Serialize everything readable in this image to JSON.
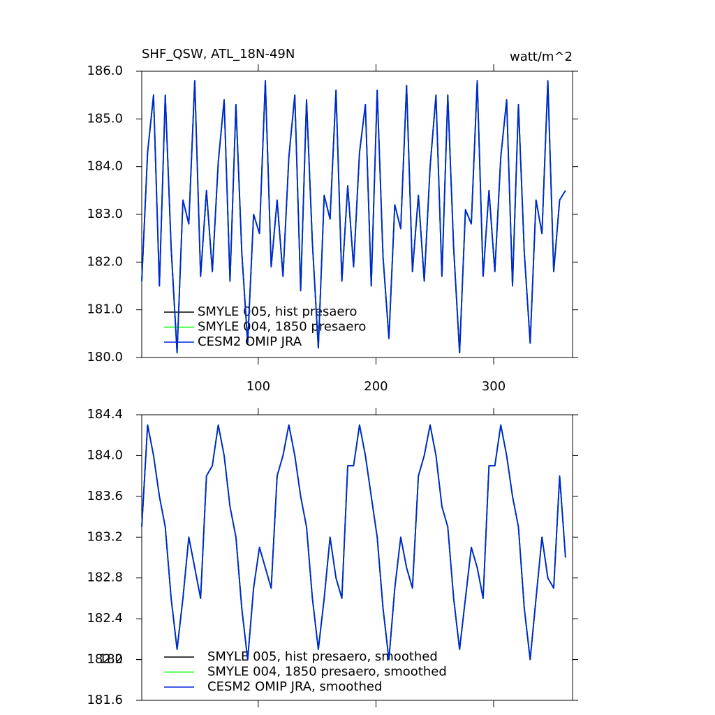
{
  "chart_data": [
    {
      "type": "line",
      "title": "SHF_QSW, ATL_18N-49N",
      "units": "watt/m^2",
      "x": [
        1,
        6,
        11,
        16,
        21,
        26,
        31,
        36,
        41,
        46,
        51,
        56,
        61,
        66,
        71,
        76,
        81,
        86,
        91,
        96,
        101,
        106,
        111,
        116,
        121,
        126,
        131,
        136,
        141,
        146,
        151,
        156,
        161,
        166,
        171,
        176,
        181,
        186,
        191,
        196,
        201,
        206,
        211,
        216,
        221,
        226,
        231,
        236,
        241,
        246,
        251,
        256,
        261,
        266,
        271,
        276,
        281,
        286,
        291,
        296,
        301,
        306,
        311,
        316,
        321,
        326,
        331,
        336,
        341,
        346,
        351,
        356,
        361
      ],
      "xlim": [
        1,
        367
      ],
      "xticks": [
        100,
        200,
        300
      ],
      "show_xtick_labels": true,
      "ylim": [
        180,
        186
      ],
      "yticks": [
        {
          "value": 180,
          "label": "180.0"
        },
        {
          "value": 181,
          "label": "181.0"
        },
        {
          "value": 182,
          "label": "182.0"
        },
        {
          "value": 183,
          "label": "183.0"
        },
        {
          "value": 184,
          "label": "184.0"
        },
        {
          "value": 185,
          "label": "185.0"
        },
        {
          "value": 186,
          "label": "186.0"
        }
      ],
      "series": [
        {
          "name": "SMYLE 005, hist presaero",
          "color": "#000000",
          "values": [
            181.6,
            184.3,
            185.5,
            181.5,
            185.5,
            182.3,
            180.1,
            183.3,
            182.8,
            185.8,
            181.7,
            183.5,
            181.8,
            184.1,
            185.4,
            181.6,
            185.3,
            182.2,
            180.3,
            183.0,
            182.6,
            185.8,
            181.9,
            183.3,
            181.7,
            184.2,
            185.5,
            181.4,
            185.4,
            182.4,
            180.2,
            183.4,
            182.9,
            185.6,
            181.6,
            183.6,
            181.9,
            184.3,
            185.3,
            181.5,
            185.6,
            182.1,
            180.4,
            183.2,
            182.7,
            185.7,
            181.8,
            183.4,
            181.6,
            184.0,
            185.5,
            181.7,
            185.5,
            182.3,
            180.1,
            183.1,
            182.8,
            185.8,
            181.7,
            183.5,
            181.8,
            184.2,
            185.4,
            181.5,
            185.3,
            182.2,
            180.3,
            183.3,
            182.6,
            185.8,
            181.8,
            183.3,
            183.5
          ]
        },
        {
          "name": "SMYLE 004, 1850 presaero",
          "color": "#00ff00",
          "values": [
            181.6,
            184.3,
            185.5,
            181.5,
            185.5,
            182.3,
            180.1,
            183.3,
            182.8,
            185.8,
            181.7,
            183.5,
            181.8,
            184.1,
            185.4,
            181.6,
            185.3,
            182.2,
            180.3,
            183.0,
            182.6,
            185.8,
            181.9,
            183.3,
            181.7,
            184.2,
            185.5,
            181.4,
            185.4,
            182.4,
            180.2,
            183.4,
            182.9,
            185.6,
            181.6,
            183.6,
            181.9,
            184.3,
            185.3,
            181.5,
            185.6,
            182.1,
            180.4,
            183.2,
            182.7,
            185.7,
            181.8,
            183.4,
            181.6,
            184.0,
            185.5,
            181.7,
            185.5,
            182.3,
            180.1,
            183.1,
            182.8,
            185.8,
            181.7,
            183.5,
            181.8,
            184.2,
            185.4,
            181.5,
            185.3,
            182.2,
            180.3,
            183.3,
            182.6,
            185.8,
            181.8,
            183.3,
            183.5
          ]
        },
        {
          "name": "CESM2 OMIP JRA",
          "color": "#0022dd",
          "values": [
            181.6,
            184.3,
            185.5,
            181.5,
            185.5,
            182.3,
            180.1,
            183.3,
            182.8,
            185.8,
            181.7,
            183.5,
            181.8,
            184.1,
            185.4,
            181.6,
            185.3,
            182.2,
            180.3,
            183.0,
            182.6,
            185.8,
            181.9,
            183.3,
            181.7,
            184.2,
            185.5,
            181.4,
            185.4,
            182.4,
            180.2,
            183.4,
            182.9,
            185.6,
            181.6,
            183.6,
            181.9,
            184.3,
            185.3,
            181.5,
            185.6,
            182.1,
            180.4,
            183.2,
            182.7,
            185.7,
            181.8,
            183.4,
            181.6,
            184.0,
            185.5,
            181.7,
            185.5,
            182.3,
            180.1,
            183.1,
            182.8,
            185.8,
            181.7,
            183.5,
            181.8,
            184.2,
            185.4,
            181.5,
            185.3,
            182.2,
            180.3,
            183.3,
            182.6,
            185.8,
            181.8,
            183.3,
            183.5
          ]
        }
      ]
    },
    {
      "type": "line",
      "x": [
        1,
        6,
        11,
        16,
        21,
        26,
        31,
        36,
        41,
        46,
        51,
        56,
        61,
        66,
        71,
        76,
        81,
        86,
        91,
        96,
        101,
        106,
        111,
        116,
        121,
        126,
        131,
        136,
        141,
        146,
        151,
        156,
        161,
        166,
        171,
        176,
        181,
        186,
        191,
        196,
        201,
        206,
        211,
        216,
        221,
        226,
        231,
        236,
        241,
        246,
        251,
        256,
        261,
        266,
        271,
        276,
        281,
        286,
        291,
        296,
        301,
        306,
        311,
        316,
        321,
        326,
        331,
        336,
        341,
        346,
        351,
        356,
        361
      ],
      "xlim": [
        1,
        367
      ],
      "xticks": [
        100,
        200,
        300
      ],
      "show_xtick_labels": false,
      "ylim": [
        181.6,
        184.4
      ],
      "yticks": [
        181.6,
        182.0,
        {
          "value": 182,
          "label": "182.0"
        },
        182.4,
        182.8,
        183.2,
        183.6,
        {
          "value": 184,
          "label": "184.0"
        },
        184.4
      ],
      "series": [
        {
          "name": "SMYLE 005, hist presaero, smoothed",
          "color": "#000000",
          "values": [
            183.3,
            184.3,
            184.0,
            183.6,
            183.3,
            182.6,
            182.1,
            182.6,
            183.2,
            182.9,
            182.6,
            183.8,
            183.9,
            184.3,
            184.0,
            183.5,
            183.2,
            182.5,
            182.0,
            182.7,
            183.1,
            182.9,
            182.7,
            183.8,
            184.0,
            184.3,
            184.0,
            183.6,
            183.3,
            182.6,
            182.1,
            182.6,
            183.2,
            182.8,
            182.6,
            183.9,
            183.9,
            184.3,
            184.0,
            183.6,
            183.2,
            182.5,
            182.0,
            182.7,
            183.2,
            182.9,
            182.7,
            183.8,
            184.0,
            184.3,
            184.0,
            183.5,
            183.3,
            182.6,
            182.1,
            182.6,
            183.1,
            182.9,
            182.6,
            183.9,
            183.9,
            184.3,
            184.0,
            183.6,
            183.3,
            182.5,
            182.0,
            182.6,
            183.2,
            182.8,
            182.7,
            183.8,
            183.0
          ]
        },
        {
          "name": "SMYLE 004, 1850 presaero, smoothed",
          "color": "#00ff00",
          "values": [
            183.3,
            184.3,
            184.0,
            183.6,
            183.3,
            182.6,
            182.1,
            182.6,
            183.2,
            182.9,
            182.6,
            183.8,
            183.9,
            184.3,
            184.0,
            183.5,
            183.2,
            182.5,
            182.0,
            182.7,
            183.1,
            182.9,
            182.7,
            183.8,
            184.0,
            184.3,
            184.0,
            183.6,
            183.3,
            182.6,
            182.1,
            182.6,
            183.2,
            182.8,
            182.6,
            183.9,
            183.9,
            184.3,
            184.0,
            183.6,
            183.2,
            182.5,
            182.0,
            182.7,
            183.2,
            182.9,
            182.7,
            183.8,
            184.0,
            184.3,
            184.0,
            183.5,
            183.3,
            182.6,
            182.1,
            182.6,
            183.1,
            182.9,
            182.6,
            183.9,
            183.9,
            184.3,
            184.0,
            183.6,
            183.3,
            182.5,
            182.0,
            182.6,
            183.2,
            182.8,
            182.7,
            183.8,
            183.0
          ]
        },
        {
          "name": "CESM2 OMIP JRA, smoothed",
          "color": "#0022dd",
          "values": [
            183.3,
            184.3,
            184.0,
            183.6,
            183.3,
            182.6,
            182.1,
            182.6,
            183.2,
            182.9,
            182.6,
            183.8,
            183.9,
            184.3,
            184.0,
            183.5,
            183.2,
            182.5,
            182.0,
            182.7,
            183.1,
            182.9,
            182.7,
            183.8,
            184.0,
            184.3,
            184.0,
            183.6,
            183.3,
            182.6,
            182.1,
            182.6,
            183.2,
            182.8,
            182.6,
            183.9,
            183.9,
            184.3,
            184.0,
            183.6,
            183.2,
            182.5,
            182.0,
            182.7,
            183.2,
            182.9,
            182.7,
            183.8,
            184.0,
            184.3,
            184.0,
            183.5,
            183.3,
            182.6,
            182.1,
            182.6,
            183.1,
            182.9,
            182.6,
            183.9,
            183.9,
            184.3,
            184.0,
            183.6,
            183.3,
            182.5,
            182.0,
            182.6,
            183.2,
            182.8,
            182.7,
            183.8,
            183.0
          ]
        }
      ]
    }
  ]
}
